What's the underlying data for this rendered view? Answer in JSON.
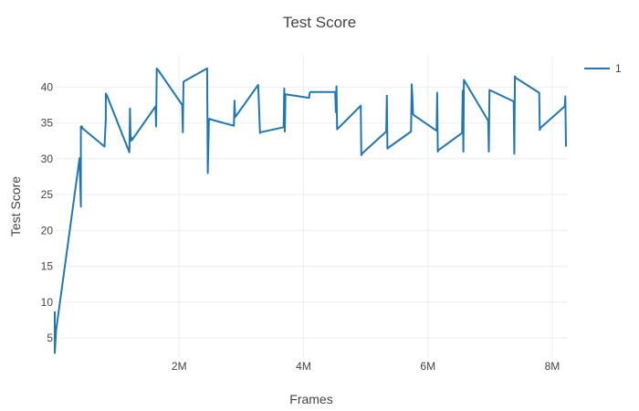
{
  "chart_data": {
    "type": "line",
    "title": "Test Score",
    "xlabel": "Frames",
    "ylabel": "Test Score",
    "xlim": [
      0,
      8250000
    ],
    "ylim": [
      2.2,
      44.5
    ],
    "x_ticks": [
      2000000,
      4000000,
      6000000,
      8000000
    ],
    "x_tick_labels": [
      "2M",
      "4M",
      "6M",
      "8M"
    ],
    "y_ticks": [
      5,
      10,
      15,
      20,
      25,
      30,
      35,
      40
    ],
    "y_tick_labels": [
      "5",
      "10",
      "15",
      "20",
      "25",
      "30",
      "35",
      "40"
    ],
    "grid": true,
    "legend_position": "top-right",
    "series": [
      {
        "name": "1",
        "color": "#1f77b4",
        "x": [
          0,
          0,
          0,
          20000,
          400000,
          420000,
          420000,
          440000,
          440000,
          800000,
          820000,
          820000,
          840000,
          1200000,
          1210000,
          1220000,
          1230000,
          1240000,
          1620000,
          1630000,
          1640000,
          1660000,
          2050000,
          2060000,
          2070000,
          2080000,
          2450000,
          2460000,
          2480000,
          2490000,
          2500000,
          2880000,
          2890000,
          2900000,
          3270000,
          3280000,
          3300000,
          3310000,
          3680000,
          3690000,
          3700000,
          3710000,
          4090000,
          4100000,
          4110000,
          4510000,
          4520000,
          4530000,
          4540000,
          4920000,
          4930000,
          4940000,
          5330000,
          5340000,
          5350000,
          5360000,
          5730000,
          5740000,
          5750000,
          5760000,
          5770000,
          6140000,
          6150000,
          6160000,
          6170000,
          6550000,
          6560000,
          6570000,
          6580000,
          6970000,
          6980000,
          6990000,
          7380000,
          7390000,
          7400000,
          7410000,
          7790000,
          7800000,
          7810000,
          8200000,
          8210000,
          8220000
        ],
        "y": [
          8.7,
          4.5,
          2.9,
          6.0,
          30.1,
          23.3,
          34.5,
          34.5,
          34.3,
          31.7,
          35.5,
          39.1,
          38.8,
          30.9,
          37.0,
          32.5,
          33.0,
          32.6,
          37.3,
          34.5,
          42.6,
          42.4,
          37.5,
          33.7,
          40.7,
          40.8,
          42.6,
          28.0,
          35.5,
          35.6,
          35.5,
          34.6,
          38.1,
          35.8,
          40.3,
          38.5,
          33.6,
          33.7,
          34.4,
          39.8,
          33.8,
          39.0,
          38.5,
          39.2,
          39.3,
          39.3,
          36.5,
          40.1,
          34.1,
          37.4,
          30.5,
          30.7,
          33.8,
          38.8,
          31.4,
          31.5,
          33.8,
          40.4,
          38.8,
          36.3,
          36.1,
          33.9,
          39.2,
          31.0,
          31.2,
          33.6,
          39.5,
          31.0,
          41.0,
          35.3,
          31.0,
          39.6,
          38.0,
          30.7,
          41.5,
          41.3,
          39.2,
          34.0,
          34.3,
          37.3,
          38.7,
          31.7
        ]
      }
    ]
  }
}
